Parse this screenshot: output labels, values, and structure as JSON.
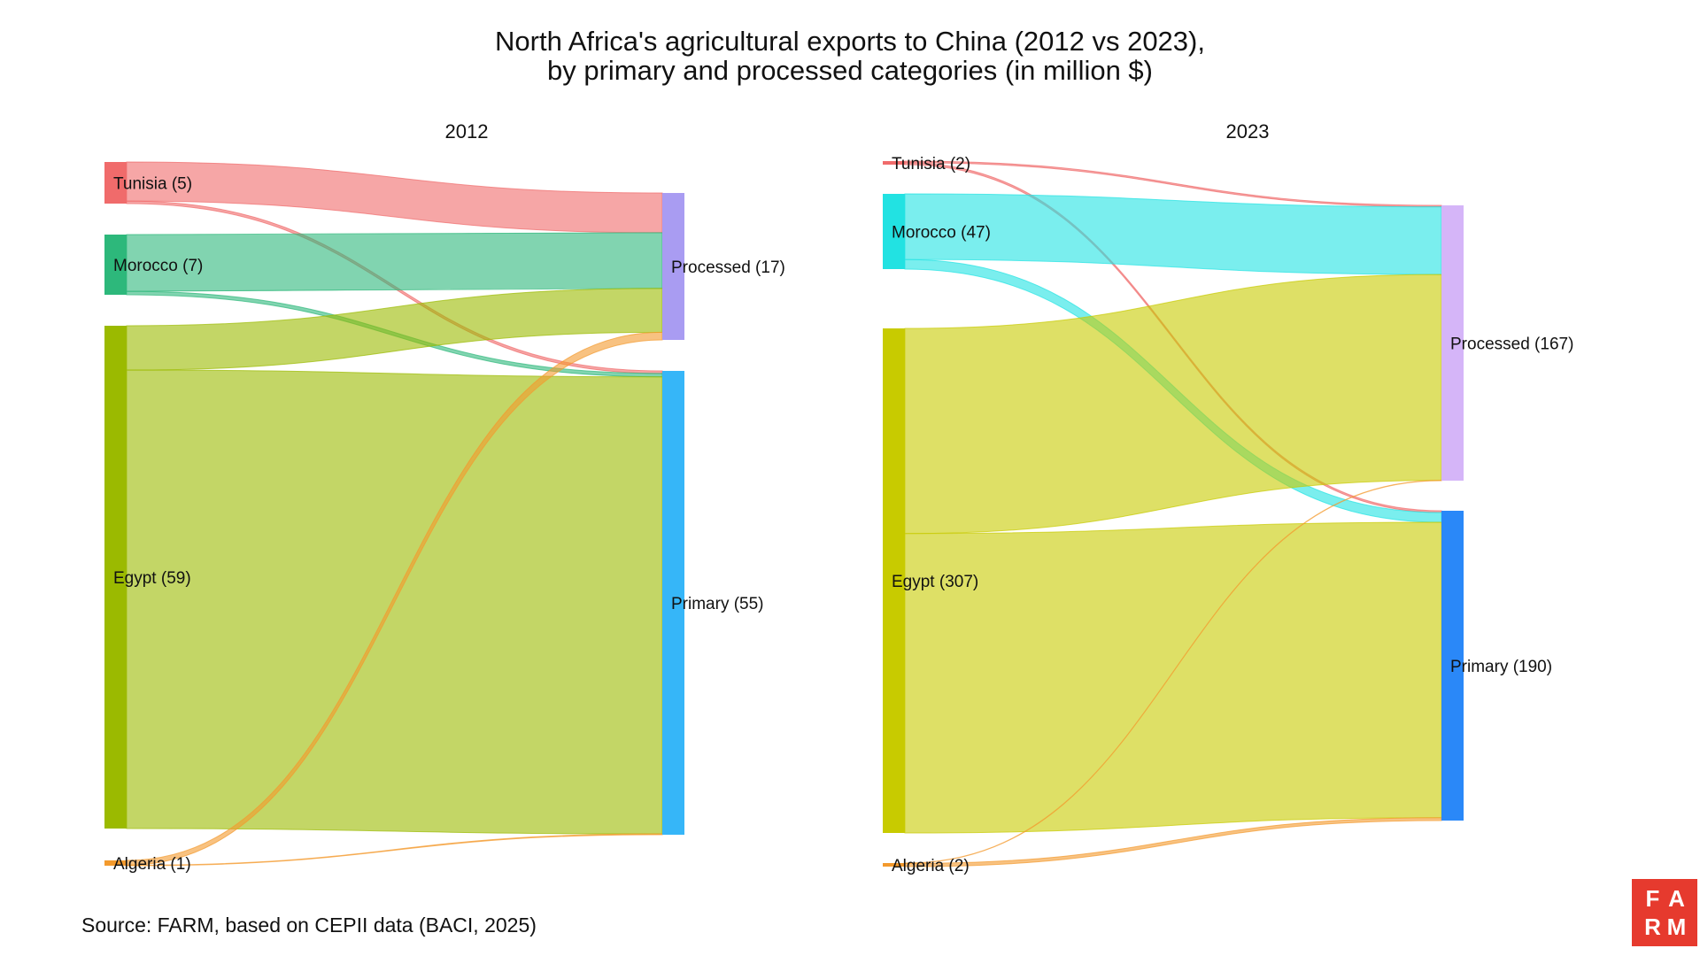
{
  "title_line_1": "North Africa's agricultural exports to China (2012 vs 2023),",
  "title_line_2": "by primary and processed categories (in million $)",
  "source": "Source: FARM, based on CEPII data (BACI, 2025)",
  "logo": {
    "letters": [
      "F",
      "A",
      "R",
      "M"
    ],
    "background": "#e63a2e"
  },
  "chart_data": [
    {
      "type": "sankey",
      "title": "2012",
      "unit": "million $",
      "sources": [
        {
          "name": "Tunisia",
          "label": "Tunisia (5)",
          "value": 5,
          "color": "#f06b6b"
        },
        {
          "name": "Morocco",
          "label": "Morocco (7)",
          "value": 7,
          "color": "#2db87b"
        },
        {
          "name": "Egypt",
          "label": "Egypt (59)",
          "value": 59,
          "color": "#9bba00"
        },
        {
          "name": "Algeria",
          "label": "Algeria (1)",
          "value": 1,
          "color": "#f39a2d"
        }
      ],
      "targets": [
        {
          "name": "Processed",
          "label": "Processed (17)",
          "value": 17,
          "color": "#a99cf2"
        },
        {
          "name": "Primary",
          "label": "Primary (55)",
          "value": 55,
          "color": "#36b6f8"
        }
      ],
      "links": [
        {
          "source": "Tunisia",
          "target": "Processed",
          "value": 4.7
        },
        {
          "source": "Tunisia",
          "target": "Primary",
          "value": 0.3
        },
        {
          "source": "Morocco",
          "target": "Processed",
          "value": 6.6
        },
        {
          "source": "Morocco",
          "target": "Primary",
          "value": 0.4
        },
        {
          "source": "Egypt",
          "target": "Processed",
          "value": 5.2
        },
        {
          "source": "Egypt",
          "target": "Primary",
          "value": 53.8
        },
        {
          "source": "Algeria",
          "target": "Processed",
          "value": 0.9
        },
        {
          "source": "Algeria",
          "target": "Primary",
          "value": 0.1
        }
      ]
    },
    {
      "type": "sankey",
      "title": "2023",
      "unit": "million $",
      "sources": [
        {
          "name": "Tunisia",
          "label": "Tunisia (2)",
          "value": 2,
          "color": "#f06b6b"
        },
        {
          "name": "Morocco",
          "label": "Morocco (47)",
          "value": 47,
          "color": "#22e2e2"
        },
        {
          "name": "Egypt",
          "label": "Egypt (307)",
          "value": 307,
          "color": "#c8cb00"
        },
        {
          "name": "Algeria",
          "label": "Algeria (2)",
          "value": 2,
          "color": "#f39a2d"
        }
      ],
      "targets": [
        {
          "name": "Processed",
          "label": "Processed (167)",
          "value": 167,
          "color": "#d5b5f8"
        },
        {
          "name": "Primary",
          "label": "Primary (190)",
          "value": 190,
          "color": "#2a88f8"
        }
      ],
      "links": [
        {
          "source": "Tunisia",
          "target": "Processed",
          "value": 0.9
        },
        {
          "source": "Tunisia",
          "target": "Primary",
          "value": 1.1
        },
        {
          "source": "Morocco",
          "target": "Processed",
          "value": 41
        },
        {
          "source": "Morocco",
          "target": "Primary",
          "value": 6
        },
        {
          "source": "Egypt",
          "target": "Processed",
          "value": 124.8
        },
        {
          "source": "Egypt",
          "target": "Primary",
          "value": 182.2
        },
        {
          "source": "Algeria",
          "target": "Processed",
          "value": 0.2
        },
        {
          "source": "Algeria",
          "target": "Primary",
          "value": 1.8
        }
      ]
    }
  ]
}
